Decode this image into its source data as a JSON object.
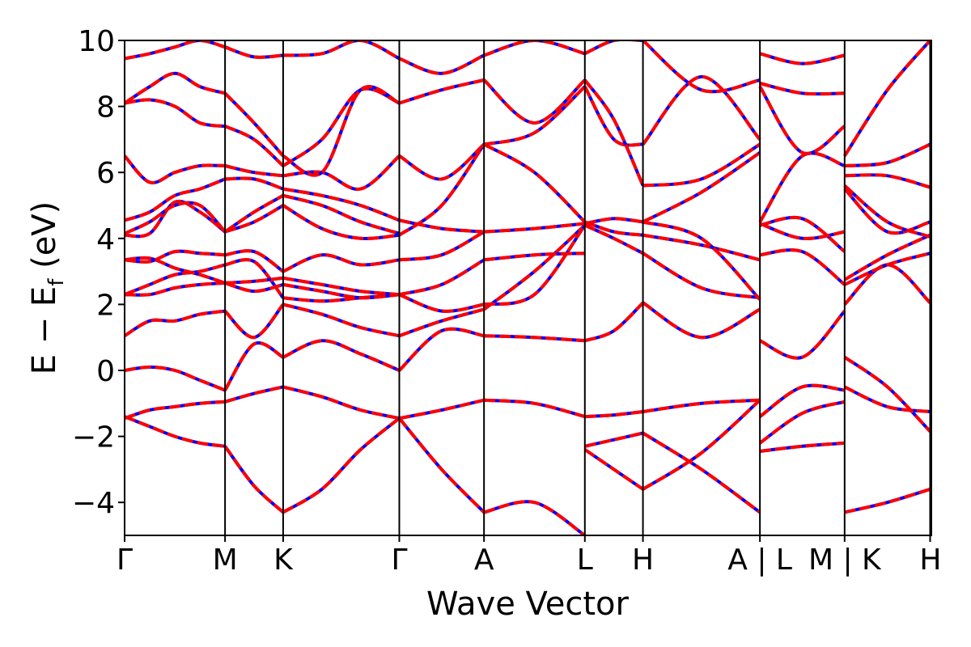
{
  "chart_data": {
    "type": "line",
    "title": "",
    "xlabel": "Wave Vector",
    "ylabel_main": "E − E",
    "ylabel_sub": "f",
    "ylabel_unit": " (eV)",
    "ylim": [
      -5,
      10
    ],
    "yticks": [
      -4,
      -2,
      0,
      2,
      4,
      6,
      8,
      10
    ],
    "ytick_labels": [
      "−4",
      "−2",
      "0",
      "2",
      "4",
      "6",
      "8",
      "10"
    ],
    "xticks": [
      {
        "label": "Γ",
        "pos": 0.0
      },
      {
        "label": "M",
        "pos": 0.1245
      },
      {
        "label": "K",
        "pos": 0.1965
      },
      {
        "label": "Γ",
        "pos": 0.3405
      },
      {
        "label": "A",
        "pos": 0.4455
      },
      {
        "label": "L",
        "pos": 0.5705
      },
      {
        "label": "H",
        "pos": 0.6425
      },
      {
        "label": "A | L",
        "pos": 0.7875
      },
      {
        "label": "M | K",
        "pos": 0.8925
      },
      {
        "label": "H",
        "pos": 0.9985
      }
    ],
    "grid": false,
    "legend": "none",
    "colors": {
      "band_solid": "#0000ff",
      "band_dashed": "#ff0000",
      "vline": "#000000"
    },
    "segments": [
      {
        "x0": 0.0,
        "x1": 0.1245,
        "bands": [
          [
            -1.4,
            -1.7,
            -2.0,
            -2.2,
            -2.3
          ],
          [
            -1.45,
            -1.2,
            -1.1,
            -1.0,
            -0.95
          ],
          [
            0.0,
            0.1,
            0.0,
            -0.3,
            -0.6
          ],
          [
            1.05,
            1.5,
            1.5,
            1.7,
            1.8
          ],
          [
            2.3,
            2.6,
            2.9,
            3.0,
            3.2
          ],
          [
            2.3,
            2.3,
            2.5,
            2.6,
            2.65
          ],
          [
            3.35,
            3.4,
            3.1,
            2.9,
            2.65
          ],
          [
            3.35,
            3.3,
            3.6,
            3.55,
            3.5
          ],
          [
            4.1,
            4.15,
            5.1,
            4.8,
            4.2
          ],
          [
            4.15,
            4.5,
            5.0,
            5.0,
            4.2
          ],
          [
            4.55,
            4.8,
            5.3,
            5.5,
            5.8
          ],
          [
            6.5,
            5.7,
            6.0,
            6.2,
            6.2
          ],
          [
            8.1,
            8.2,
            8.0,
            7.5,
            7.4
          ],
          [
            8.1,
            8.6,
            9.0,
            8.6,
            8.4
          ],
          [
            9.45,
            9.6,
            9.8,
            10.0,
            9.8
          ]
        ]
      },
      {
        "x0": 0.1245,
        "x1": 0.1965,
        "bands": [
          [
            -2.3,
            -3.5,
            -4.3
          ],
          [
            -0.95,
            -0.7,
            -0.5
          ],
          [
            -0.6,
            0.8,
            0.4
          ],
          [
            1.8,
            1.0,
            2.0
          ],
          [
            3.2,
            3.3,
            2.2
          ],
          [
            2.65,
            2.4,
            2.6
          ],
          [
            2.65,
            2.7,
            2.8
          ],
          [
            3.5,
            3.6,
            3.0
          ],
          [
            4.2,
            4.5,
            5.0
          ],
          [
            4.2,
            4.8,
            5.3
          ],
          [
            5.8,
            5.8,
            5.5
          ],
          [
            6.2,
            6.0,
            5.9
          ],
          [
            7.4,
            7.0,
            6.2
          ],
          [
            8.4,
            7.5,
            6.5
          ],
          [
            9.8,
            9.5,
            9.55
          ]
        ]
      },
      {
        "x0": 0.1965,
        "x1": 0.3405,
        "bands": [
          [
            -4.3,
            -3.6,
            -2.4,
            -1.45
          ],
          [
            -0.5,
            -0.8,
            -1.2,
            -1.45
          ],
          [
            0.4,
            0.9,
            0.5,
            0.0
          ],
          [
            2.0,
            1.7,
            1.3,
            1.05
          ],
          [
            2.2,
            2.1,
            2.2,
            2.3
          ],
          [
            2.6,
            2.4,
            2.2,
            2.3
          ],
          [
            2.8,
            2.6,
            2.4,
            2.3
          ],
          [
            3.0,
            3.5,
            3.2,
            3.35
          ],
          [
            5.0,
            4.3,
            4.0,
            4.1
          ],
          [
            5.3,
            5.0,
            4.5,
            4.15
          ],
          [
            5.5,
            5.3,
            5.0,
            4.55
          ],
          [
            5.9,
            6.0,
            5.5,
            6.5
          ],
          [
            6.2,
            7.0,
            8.5,
            8.1
          ],
          [
            6.5,
            6.0,
            8.5,
            8.1
          ],
          [
            9.55,
            9.6,
            10.0,
            9.45
          ]
        ]
      },
      {
        "x0": 0.3405,
        "x1": 0.4455,
        "bands": [
          [
            -1.45,
            -3.0,
            -4.3
          ],
          [
            -1.45,
            -1.2,
            -0.9
          ],
          [
            0.0,
            1.2,
            1.05
          ],
          [
            1.05,
            1.5,
            1.85
          ],
          [
            2.3,
            1.8,
            2.0
          ],
          [
            2.3,
            2.6,
            3.35
          ],
          [
            3.35,
            3.5,
            4.2
          ],
          [
            4.1,
            5.0,
            6.85
          ],
          [
            4.55,
            4.3,
            4.2
          ],
          [
            6.5,
            5.8,
            6.85
          ],
          [
            8.1,
            8.5,
            8.8
          ],
          [
            9.45,
            9.0,
            9.55
          ]
        ]
      },
      {
        "x0": 0.4455,
        "x1": 0.5705,
        "bands": [
          [
            -4.3,
            -4.0,
            -5.0
          ],
          [
            -0.9,
            -1.0,
            -1.4
          ],
          [
            1.05,
            1.0,
            0.9
          ],
          [
            1.85,
            3.0,
            4.4
          ],
          [
            2.0,
            2.3,
            4.4
          ],
          [
            3.35,
            3.5,
            3.55
          ],
          [
            4.2,
            4.3,
            4.45
          ],
          [
            6.85,
            6.0,
            4.5
          ],
          [
            6.85,
            7.2,
            8.6
          ],
          [
            8.8,
            7.5,
            8.8
          ],
          [
            9.55,
            10.0,
            9.6
          ]
        ]
      },
      {
        "x0": 0.5705,
        "x1": 0.6425,
        "bands": [
          [
            -2.3,
            -2.1,
            -1.9
          ],
          [
            -1.4,
            -1.35,
            -1.25
          ],
          [
            0.9,
            1.2,
            2.05
          ],
          [
            -2.4,
            -3.0,
            -3.6
          ],
          [
            4.4,
            4.0,
            3.55
          ],
          [
            4.45,
            4.6,
            4.5
          ],
          [
            4.5,
            4.2,
            4.1
          ],
          [
            8.6,
            7.0,
            6.85
          ],
          [
            8.8,
            7.6,
            5.6
          ],
          [
            9.6,
            10.0,
            10.0
          ]
        ]
      },
      {
        "x0": 0.6425,
        "x1": 0.7875,
        "bands": [
          [
            -1.25,
            -1.0,
            -0.9
          ],
          [
            -3.6,
            -2.5,
            -0.9
          ],
          [
            -1.9,
            -3.0,
            -4.3
          ],
          [
            2.05,
            1.0,
            1.85
          ],
          [
            3.55,
            2.5,
            2.2
          ],
          [
            4.1,
            3.8,
            3.35
          ],
          [
            4.5,
            4.0,
            2.15
          ],
          [
            4.5,
            5.4,
            6.6
          ],
          [
            5.6,
            5.8,
            6.85
          ],
          [
            6.85,
            8.9,
            7.0
          ],
          [
            10.0,
            8.5,
            8.8
          ]
        ]
      },
      {
        "x0": 0.7875,
        "x1": 0.8925,
        "bands": [
          [
            -2.45,
            -2.3,
            -2.2
          ],
          [
            -2.2,
            -1.3,
            -0.95
          ],
          [
            -1.4,
            -0.5,
            -0.6
          ],
          [
            0.9,
            0.4,
            1.8
          ],
          [
            3.5,
            3.6,
            2.6
          ],
          [
            4.4,
            4.6,
            3.6
          ],
          [
            4.45,
            4.0,
            4.2
          ],
          [
            4.5,
            6.5,
            6.2
          ],
          [
            8.6,
            6.6,
            7.4
          ],
          [
            8.7,
            8.4,
            8.4
          ],
          [
            9.6,
            9.3,
            9.55
          ]
        ]
      },
      {
        "x0": 0.8925,
        "x1": 0.9985,
        "bands": [
          [
            -4.3,
            -4.0,
            -3.6
          ],
          [
            -0.5,
            -1.1,
            -1.25
          ],
          [
            0.4,
            -0.5,
            -1.85
          ],
          [
            2.0,
            3.2,
            2.05
          ],
          [
            2.6,
            3.2,
            3.55
          ],
          [
            2.75,
            3.5,
            4.1
          ],
          [
            5.5,
            4.2,
            4.5
          ],
          [
            5.6,
            4.5,
            4.05
          ],
          [
            5.9,
            5.9,
            5.55
          ],
          [
            6.2,
            6.3,
            6.85
          ],
          [
            6.5,
            8.5,
            10.0
          ]
        ]
      }
    ]
  }
}
